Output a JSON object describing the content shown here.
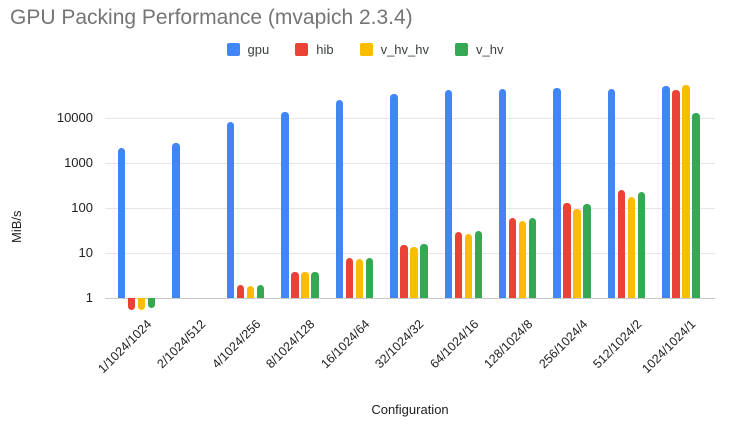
{
  "chart_data": {
    "type": "bar",
    "title": "GPU Packing Performance (mvapich 2.3.4)",
    "xlabel": "Configuration",
    "ylabel": "MiB/s",
    "y_scale": "log",
    "y_ticks": [
      1,
      10,
      100,
      1000,
      10000
    ],
    "ylim": [
      0.47,
      71000
    ],
    "grid": true,
    "legend_position": "top",
    "categories": [
      "1/1024/1024",
      "2/1024/512",
      "4/1024/256",
      "8/1024/128",
      "16/1024/64",
      "32/1024/32",
      "64/1024/16",
      "128/1024/8",
      "256/1024/4",
      "512/1024/2",
      "1024/1024/1"
    ],
    "series": [
      {
        "name": "gpu",
        "color": "#4285F4",
        "values": [
          2200,
          2800,
          8500,
          13500,
          25000,
          35000,
          42000,
          44000,
          48000,
          44000,
          52000
        ]
      },
      {
        "name": "hib",
        "color": "#EA4335",
        "values": [
          0.55,
          null,
          2.0,
          3.9,
          7.7,
          15.5,
          30,
          62,
          130,
          250,
          43000
        ]
      },
      {
        "name": "v_hv_hv",
        "color": "#FBBC04",
        "values": [
          0.55,
          null,
          1.9,
          3.8,
          7.5,
          14,
          27,
          53,
          98,
          175,
          56000
        ]
      },
      {
        "name": "v_hv",
        "color": "#34A853",
        "values": [
          0.6,
          null,
          2.0,
          3.9,
          7.7,
          16,
          31,
          62,
          125,
          230,
          13000
        ]
      }
    ]
  }
}
